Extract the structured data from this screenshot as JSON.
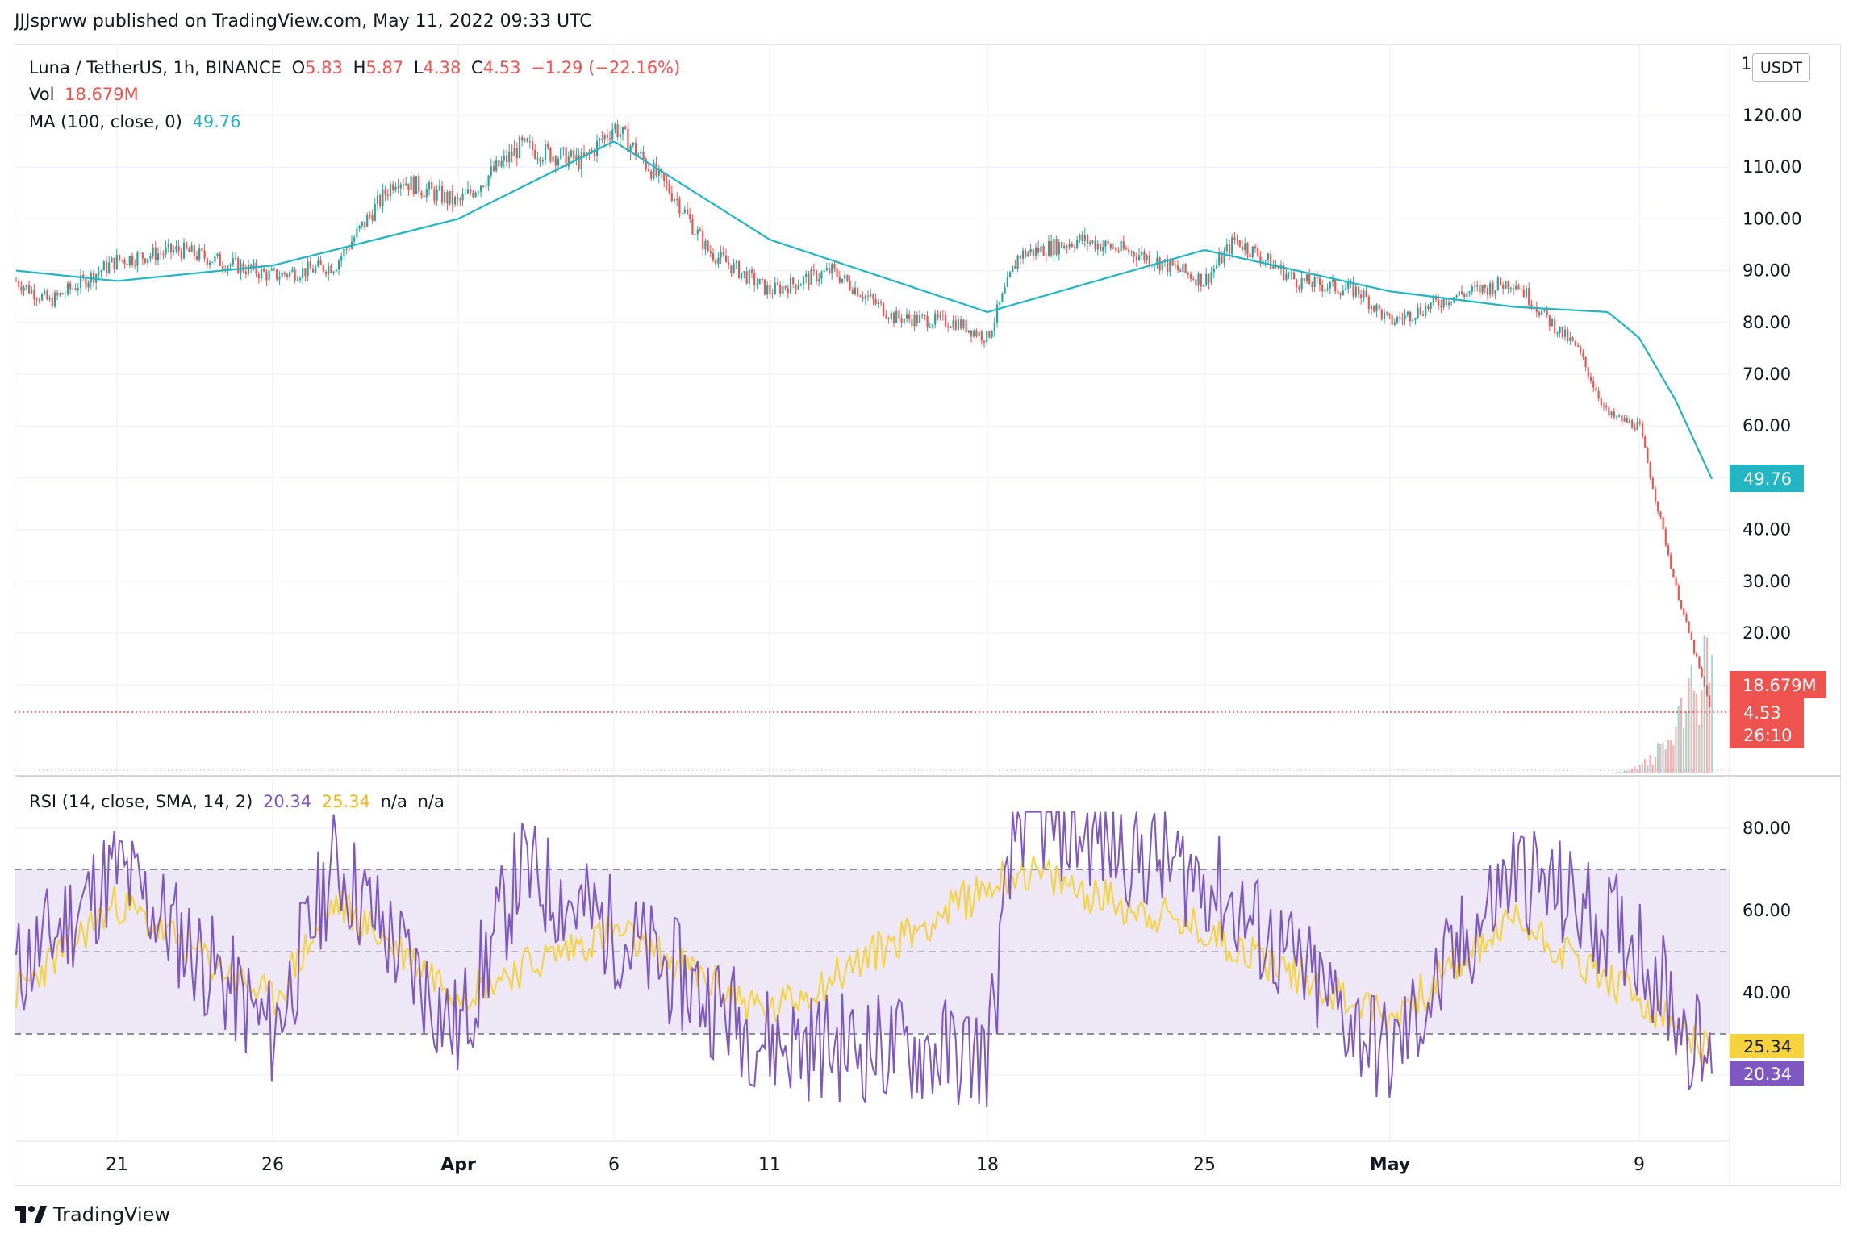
{
  "header": {
    "published": "JJJsprww published on TradingView.com, May 11, 2022 09:33 UTC"
  },
  "legend": {
    "symbol": "Luna / TetherUS, 1h, BINANCE",
    "o_label": "O",
    "o": "5.83",
    "h_label": "H",
    "h": "5.87",
    "l_label": "L",
    "l": "4.38",
    "c_label": "C",
    "c": "4.53",
    "change": "−1.29 (−22.16%)",
    "vol_label": "Vol",
    "vol": "18.679M",
    "ma_label": "MA (100, close, 0)",
    "ma": "49.76",
    "rsi_label": "RSI (14, close, SMA, 14, 2)",
    "rsi": "20.34",
    "rsi_ma": "25.34",
    "na1": "n/a",
    "na2": "n/a"
  },
  "currency": "USDT",
  "price_axis": {
    "ticks": [
      "120.00",
      "110.00",
      "100.00",
      "90.00",
      "80.00",
      "70.00",
      "60.00",
      "40.00",
      "30.00",
      "20.00"
    ],
    "top_partial": "1"
  },
  "rsi_axis": {
    "ticks": [
      "80.00",
      "60.00",
      "40.00"
    ]
  },
  "time_axis": {
    "labels": [
      "21",
      "26",
      "Apr",
      "6",
      "11",
      "18",
      "25",
      "May",
      "9"
    ]
  },
  "badges": {
    "ma": "49.76",
    "vol": "18.679M",
    "price": "4.53",
    "countdown": "26:10",
    "rsi_ma": "25.34",
    "rsi": "20.34"
  },
  "colors": {
    "up": "#26a69a",
    "down": "#ef5350",
    "ma": "#22b5c3",
    "rsi": "#7e57c2",
    "rsi_ma": "#f5d33d",
    "band": "#ede7f6"
  },
  "brand": "TradingView",
  "chart_data": {
    "type": "line",
    "title": "Luna / TetherUS, 1h, BINANCE",
    "price_series_approx": {
      "x": [
        "Mar 18",
        "Mar 19",
        "Mar 21",
        "Mar 23",
        "Mar 26",
        "Mar 28",
        "Mar 30",
        "Apr 1",
        "Apr 3",
        "Apr 5",
        "Apr 6",
        "Apr 8",
        "Apr 9",
        "Apr 11",
        "Apr 13",
        "Apr 15",
        "Apr 17",
        "Apr 18",
        "Apr 19",
        "Apr 21",
        "Apr 23",
        "Apr 25",
        "Apr 26",
        "Apr 28",
        "Apr 30",
        "May 1",
        "May 3",
        "May 5",
        "May 6",
        "May 7",
        "May 8",
        "May 9",
        "May 10",
        "May 11"
      ],
      "close": [
        88,
        84,
        92,
        94,
        89,
        91,
        108,
        103,
        114,
        111,
        118,
        104,
        94,
        86,
        90,
        81,
        80,
        77,
        93,
        96,
        93,
        88,
        96,
        88,
        86,
        80,
        85,
        88,
        81,
        75,
        62,
        60,
        29,
        4.53
      ]
    },
    "ma100": {
      "x": [
        "Mar 18",
        "Mar 21",
        "Mar 26",
        "Apr 1",
        "Apr 6",
        "Apr 11",
        "Apr 18",
        "Apr 25",
        "May 1",
        "May 5",
        "May 8",
        "May 9",
        "May 10",
        "May 11"
      ],
      "values": [
        90,
        88,
        91,
        100,
        115,
        96,
        82,
        94,
        86,
        83,
        82,
        77,
        65,
        49.76
      ]
    },
    "rsi": {
      "x": [
        "Mar 18",
        "Mar 21",
        "Mar 26",
        "Mar 28",
        "Apr 1",
        "Apr 3",
        "Apr 6",
        "Apr 11",
        "Apr 18",
        "Apr 19",
        "Apr 25",
        "May 1",
        "May 5",
        "May 9",
        "May 11"
      ],
      "values": [
        45,
        70,
        30,
        72,
        30,
        70,
        55,
        28,
        25,
        84,
        68,
        24,
        70,
        52,
        20.34
      ]
    },
    "rsi_ma": {
      "x": [
        "Mar 18",
        "Mar 21",
        "Mar 26",
        "Mar 28",
        "Apr 1",
        "Apr 6",
        "Apr 11",
        "Apr 19",
        "Apr 25",
        "May 1",
        "May 5",
        "May 9",
        "May 11"
      ],
      "values": [
        40,
        62,
        38,
        62,
        40,
        55,
        35,
        70,
        55,
        34,
        58,
        38,
        25.34
      ]
    },
    "rsi_levels": [
      70,
      50,
      30
    ],
    "ylim": [
      0,
      125
    ],
    "rsi_ylim": [
      10,
      85
    ],
    "last_close": 4.53,
    "grid": true
  }
}
